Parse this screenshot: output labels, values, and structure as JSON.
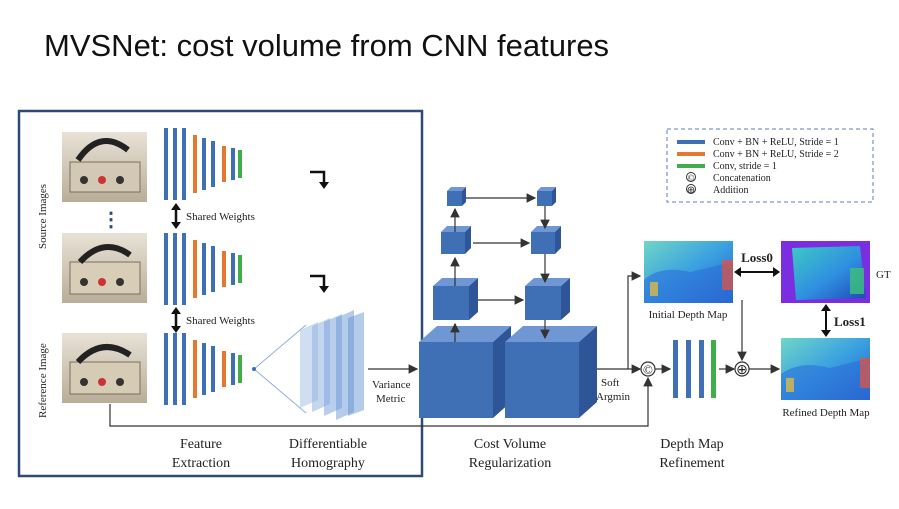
{
  "title": "MVSNet: cost volume from CNN features",
  "side_labels": {
    "source_images": "Source Images",
    "reference_image": "Reference Image"
  },
  "shared_weights": "Shared Weights",
  "ellipsis": "⋮",
  "stage_labels": {
    "feature_extraction_1": "Feature",
    "feature_extraction_2": "Extraction",
    "homography_1": "Differentiable",
    "homography_2": "Homography",
    "cost_volume_1": "Cost Volume",
    "cost_volume_2": "Regularization",
    "depth_refine_1": "Depth Map",
    "depth_refine_2": "Refinement"
  },
  "variance_1": "Variance",
  "variance_2": "Metric",
  "soft_1": "Soft",
  "soft_2": "Argmin",
  "initial_depth": "Initial Depth Map",
  "refined_depth": "Refined Depth Map",
  "gt": "GT",
  "loss0": "Loss0",
  "loss1": "Loss1",
  "concat_symbol": "©",
  "add_symbol": "⊕",
  "legend": {
    "conv_s1": "Conv + BN + ReLU, Stride = 1",
    "conv_s2": "Conv + BN + ReLU, Stride = 2",
    "conv": "Conv, stride = 1",
    "concat": "Concatenation",
    "addition": "Addition"
  },
  "colors": {
    "blue": "#3F6FB5",
    "orange": "#E4782F",
    "green": "#3FAE49",
    "frame": "#2E4A78",
    "cube": "#3F6FB5"
  }
}
